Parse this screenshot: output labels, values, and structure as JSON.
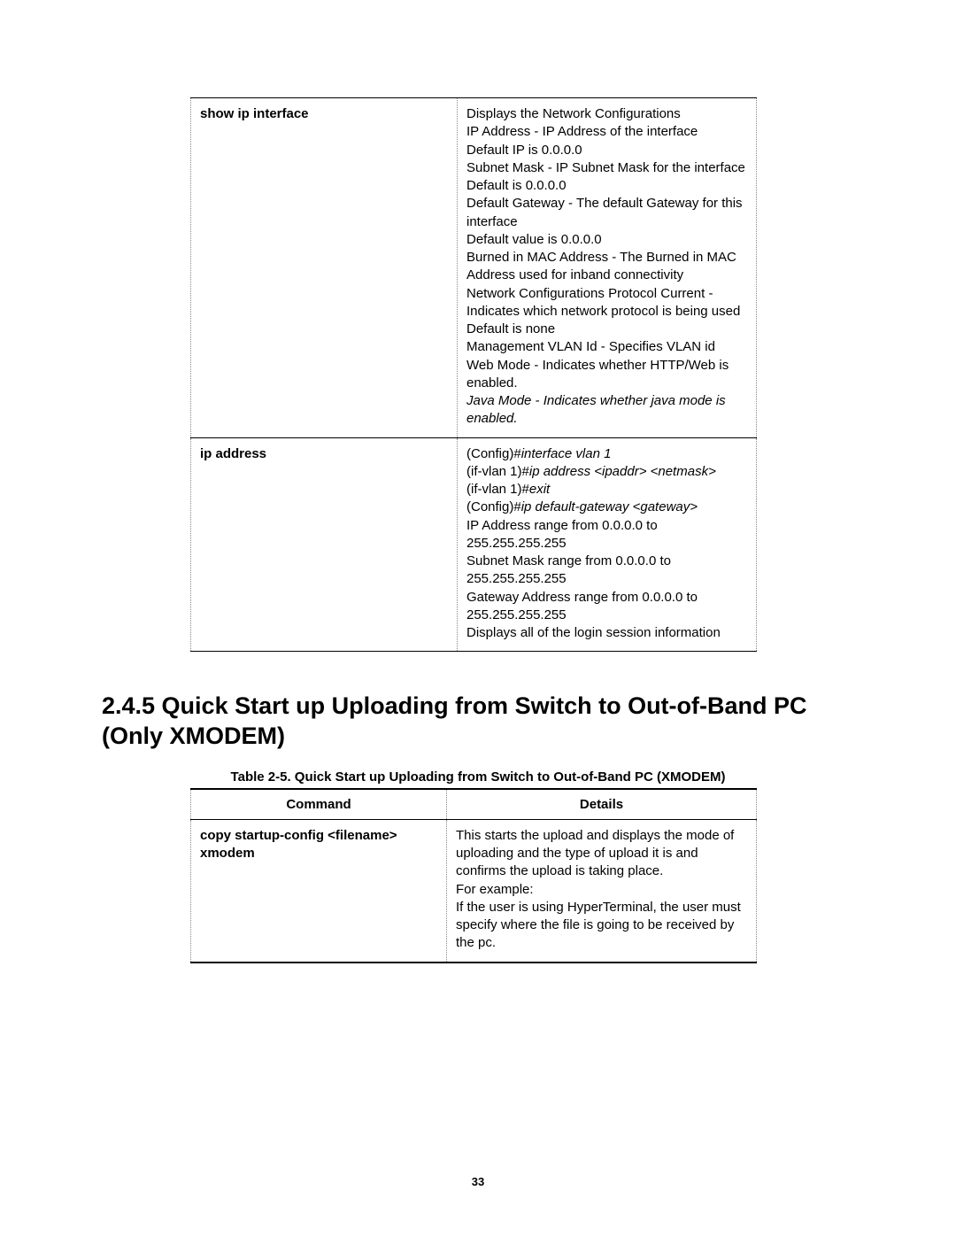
{
  "table1": {
    "rows": [
      {
        "command": "show ip interface",
        "details_lines": [
          {
            "t": "Displays the Network Configurations"
          },
          {
            "t": "IP Address - IP Address of the interface"
          },
          {
            "t": "Default IP is 0.0.0.0"
          },
          {
            "t": "Subnet Mask - IP Subnet Mask for the interface"
          },
          {
            "t": "Default is 0.0.0.0"
          },
          {
            "t": "Default Gateway - The default Gateway for this interface"
          },
          {
            "t": "Default value is 0.0.0.0"
          },
          {
            "t": "Burned in MAC Address - The Burned in MAC Address used for inband connectivity"
          },
          {
            "t": "Network Configurations Protocol Current - Indicates which network protocol is being used"
          },
          {
            "t": "Default is none"
          },
          {
            "t": "Management VLAN Id - Specifies VLAN id"
          },
          {
            "t": "Web Mode - Indicates whether HTTP/Web is enabled."
          },
          {
            "t": "Java Mode - Indicates whether java mode is enabled.",
            "italic": true
          }
        ]
      },
      {
        "command": "ip address",
        "details_lines": [
          {
            "runs": [
              {
                "t": "(Config)#"
              },
              {
                "t": "interface vlan 1",
                "italic": true
              }
            ]
          },
          {
            "runs": [
              {
                "t": "(if-vlan 1)#"
              },
              {
                "t": "ip address <ipaddr> <netmask>",
                "italic": true
              }
            ]
          },
          {
            "runs": [
              {
                "t": "(if-vlan 1)#"
              },
              {
                "t": "exit",
                "italic": true
              }
            ]
          },
          {
            "runs": [
              {
                "t": "(Config)#"
              },
              {
                "t": "ip default-gateway <gateway>",
                "italic": true
              }
            ]
          },
          {
            "t": "IP Address range from 0.0.0.0 to 255.255.255.255"
          },
          {
            "t": "Subnet Mask range from 0.0.0.0 to 255.255.255.255"
          },
          {
            "t": "Gateway Address range from 0.0.0.0 to 255.255.255.255"
          },
          {
            "t": "Displays all of the login session information"
          }
        ]
      }
    ]
  },
  "section_heading": "2.4.5 Quick Start up Uploading from Switch to Out-of-Band PC (Only XMODEM)",
  "table2": {
    "caption": "Table 2-5. Quick Start up Uploading from Switch to Out-of-Band PC (XMODEM)",
    "head_command": "Command",
    "head_details": "Details",
    "rows": [
      {
        "command": "copy   startup-config <filename> xmodem",
        "details_lines": [
          {
            "t": "This starts the upload and displays the mode of uploading and the type of upload it is and confirms the upload is taking place."
          },
          {
            "t": "For example:"
          },
          {
            "t": "If the user is using HyperTerminal, the user must specify where the file is going to be received by the pc."
          }
        ]
      }
    ]
  },
  "page_number": "33"
}
